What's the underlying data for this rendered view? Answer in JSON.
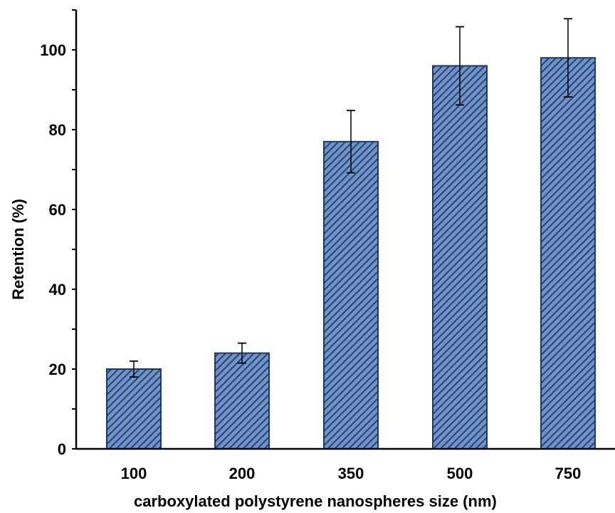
{
  "chart_data": {
    "type": "bar",
    "title": "",
    "xlabel": "carboxylated polystyrene nanospheres size (nm)",
    "ylabel": "Retention (%)",
    "categories": [
      "100",
      "200",
      "350",
      "500",
      "750"
    ],
    "values": [
      20,
      24,
      77,
      96,
      98
    ],
    "errors": [
      2,
      2.5,
      7.8,
      9.8,
      9.8
    ],
    "ylim": [
      0,
      110
    ],
    "yticks": [
      "0",
      "20",
      "40",
      "60",
      "80",
      "100"
    ],
    "grid": false,
    "legend": "none",
    "colors": {
      "bar_fill": "#6f93c4",
      "bar_hatch": "#1b3a6b",
      "bar_edge": "#1b3a6b",
      "axis": "#000000"
    }
  }
}
